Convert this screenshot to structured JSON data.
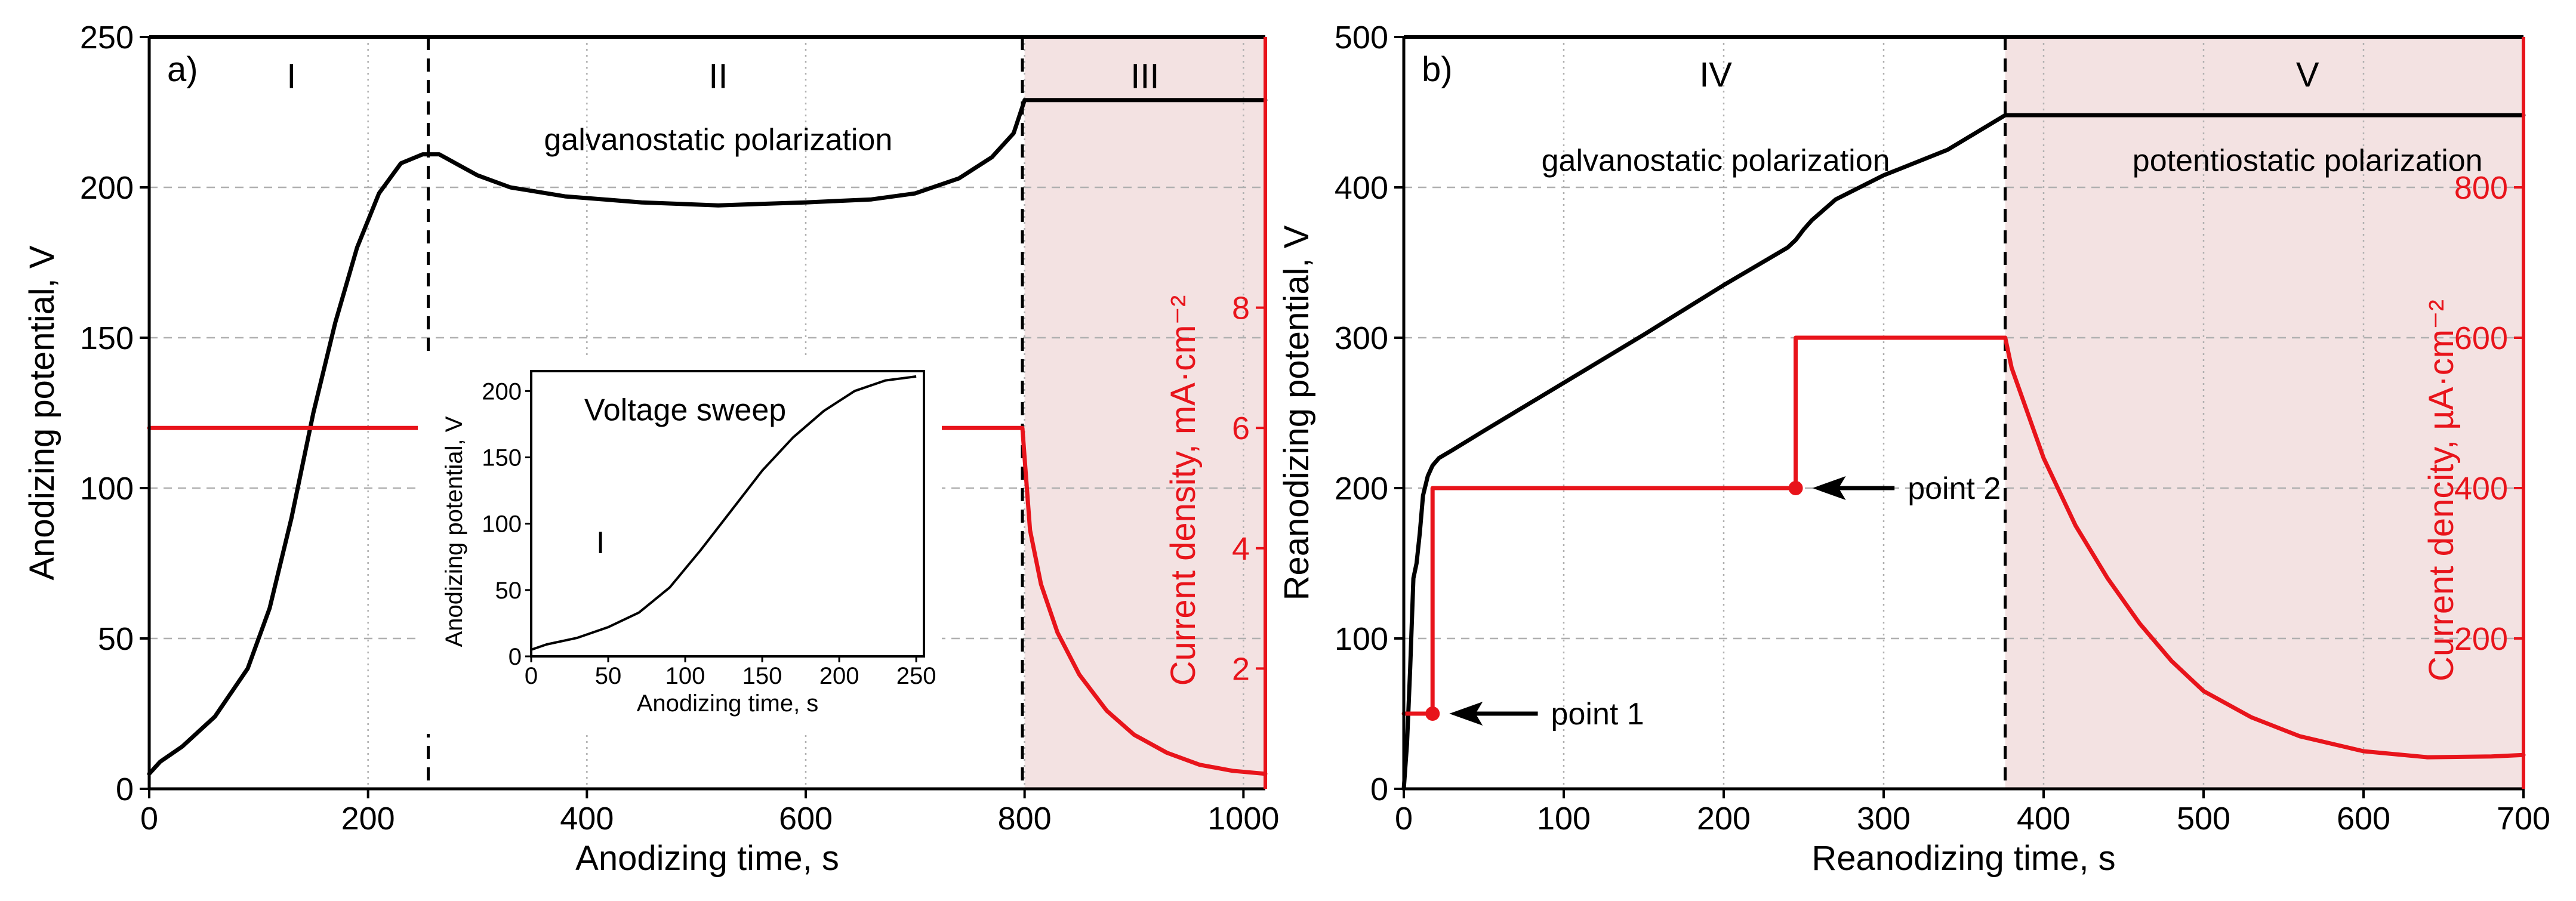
{
  "colors": {
    "potential": "#000000",
    "current": "#e8141b",
    "shade": "#f3e2e2",
    "grid": "#b0b0b0"
  },
  "chart_data": [
    {
      "type": "line",
      "panel_label": "a)",
      "xlabel": "Anodizing time, s",
      "ylabel": "Anodizing potential, V",
      "y2label": "Current density, mA·cm⁻²",
      "xlim": [
        0,
        1020
      ],
      "ylim": [
        0,
        250
      ],
      "y2lim": [
        0,
        12.5
      ],
      "xticks": [
        0,
        200,
        400,
        600,
        800,
        1000
      ],
      "yticks": [
        0,
        50,
        100,
        150,
        200,
        250
      ],
      "y2ticks": [
        2,
        4,
        6,
        8
      ],
      "shaded_region": [
        800,
        1020
      ],
      "stage_boundaries": [
        255,
        798
      ],
      "stage_labels": [
        {
          "text": "I",
          "x": 130,
          "y": 237
        },
        {
          "text": "II",
          "x": 520,
          "y": 237
        },
        {
          "text": "III",
          "x": 910,
          "y": 237
        }
      ],
      "annotations": [
        {
          "text": "galvanostatic polarization",
          "x": 520,
          "y": 216
        }
      ],
      "series": [
        {
          "name": "Anodizing potential",
          "axis": "left",
          "x": [
            0,
            10,
            30,
            60,
            90,
            110,
            130,
            150,
            170,
            190,
            210,
            230,
            250,
            265,
            280,
            300,
            330,
            380,
            450,
            520,
            600,
            660,
            700,
            740,
            770,
            790,
            800,
            850,
            900,
            950,
            1020
          ],
          "y": [
            5,
            9,
            14,
            24,
            40,
            60,
            90,
            125,
            155,
            180,
            198,
            208,
            211,
            211,
            208,
            204,
            200,
            197,
            195,
            194,
            195,
            196,
            198,
            203,
            210,
            218,
            229,
            229,
            229,
            229,
            229
          ]
        },
        {
          "name": "Current density",
          "axis": "right",
          "x": [
            0,
            798,
            800,
            805,
            815,
            830,
            850,
            875,
            900,
            930,
            960,
            990,
            1020
          ],
          "y": [
            6.0,
            6.0,
            5.5,
            4.3,
            3.4,
            2.6,
            1.9,
            1.3,
            0.9,
            0.6,
            0.4,
            0.3,
            0.25
          ]
        }
      ],
      "inset": {
        "title": "Voltage sweep",
        "stage_label": "I",
        "xlabel": "Anodizing time, s",
        "ylabel": "Anodizing potential, V",
        "xlim": [
          0,
          255
        ],
        "ylim": [
          0,
          215
        ],
        "xticks": [
          0,
          50,
          100,
          150,
          200,
          250
        ],
        "yticks": [
          0,
          50,
          100,
          150,
          200
        ],
        "x": [
          0,
          10,
          30,
          50,
          70,
          90,
          110,
          130,
          150,
          170,
          190,
          210,
          230,
          250
        ],
        "y": [
          5,
          9,
          14,
          22,
          33,
          52,
          80,
          110,
          140,
          165,
          185,
          200,
          208,
          211
        ]
      }
    },
    {
      "type": "line",
      "panel_label": "b)",
      "xlabel": "Reanodizing time, s",
      "ylabel": "Reanodizing potential, V",
      "y2label": "Current dencity, µA·cm⁻²",
      "xlim": [
        0,
        700
      ],
      "ylim": [
        0,
        500
      ],
      "y2lim": [
        0,
        1000
      ],
      "xticks": [
        0,
        100,
        200,
        300,
        400,
        500,
        600,
        700
      ],
      "yticks": [
        0,
        100,
        200,
        300,
        400,
        500
      ],
      "y2ticks": [
        200,
        400,
        600,
        800
      ],
      "shaded_region": [
        376,
        700
      ],
      "stage_boundaries": [
        376
      ],
      "stage_labels": [
        {
          "text": "IV",
          "x": 195,
          "y": 475
        },
        {
          "text": "V",
          "x": 565,
          "y": 475
        }
      ],
      "annotations": [
        {
          "text": "galvanostatic polarization",
          "x": 195,
          "y": 418
        },
        {
          "text": "potentiostatic polarization",
          "x": 565,
          "y": 418
        }
      ],
      "points": [
        {
          "label": "point 1",
          "x": 18,
          "y2": 100,
          "text_x": 92
        },
        {
          "label": "point 2",
          "x": 245,
          "y2": 400,
          "text_x": 315
        }
      ],
      "series": [
        {
          "name": "Reanodizing potential",
          "axis": "left",
          "x": [
            0,
            2,
            4,
            6,
            8,
            10,
            12,
            15,
            18,
            22,
            30,
            50,
            100,
            150,
            200,
            240,
            245,
            250,
            255,
            270,
            300,
            340,
            376,
            380,
            450,
            550,
            650,
            700
          ],
          "y": [
            0,
            30,
            80,
            140,
            150,
            170,
            195,
            208,
            215,
            220,
            225,
            238,
            270,
            302,
            335,
            360,
            365,
            372,
            378,
            392,
            408,
            425,
            448,
            448,
            448,
            448,
            448,
            448
          ]
        },
        {
          "name": "Current dencity",
          "axis": "right",
          "x": [
            0,
            18,
            18,
            245,
            245,
            376,
            380,
            390,
            400,
            420,
            440,
            460,
            480,
            500,
            530,
            560,
            600,
            640,
            680,
            700
          ],
          "y": [
            100,
            100,
            400,
            400,
            600,
            600,
            560,
            500,
            440,
            350,
            280,
            220,
            170,
            130,
            95,
            70,
            50,
            42,
            43,
            45
          ]
        }
      ]
    }
  ]
}
